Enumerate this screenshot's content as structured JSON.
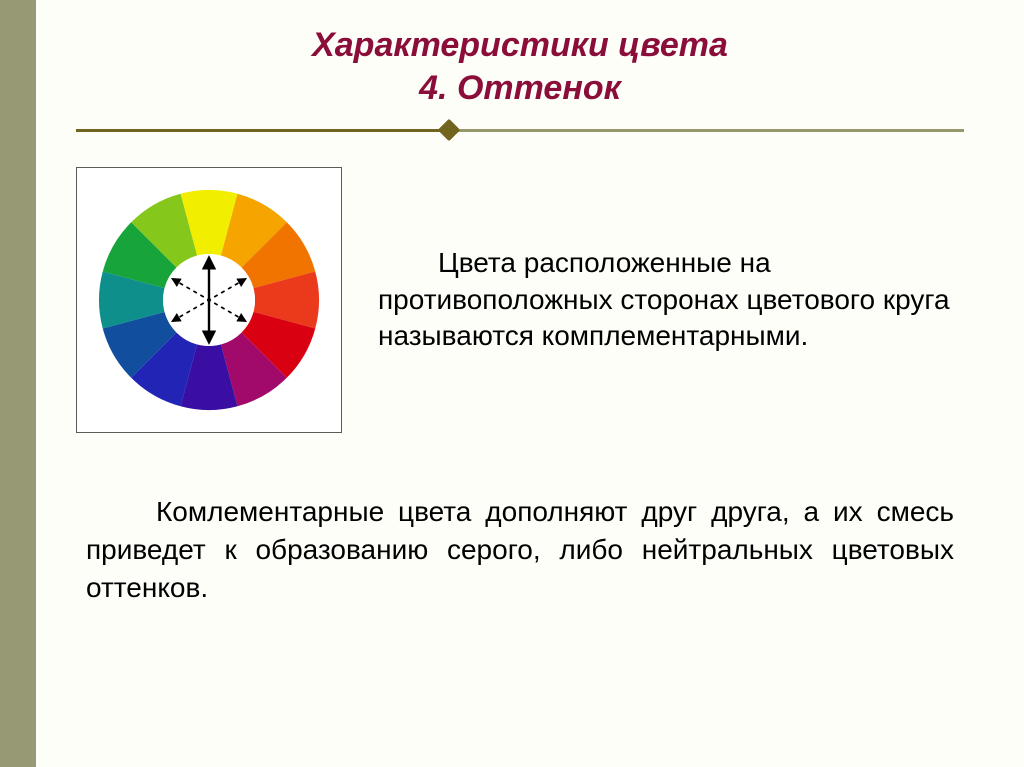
{
  "title_line1": "Характеристики цвета",
  "title_line2": "4. Оттенок",
  "paragraph_right": "Цвета расположенные на противоположных сторонах цветового круга называются комплементарными.",
  "paragraph_bottom": "Комлементарные цвета дополняют друг друга, а их смесь приведет к образованию серого, либо нейтральных цветовых оттенков.",
  "style": {
    "title_color": "#8a0d3a",
    "rule_base": "#97996c",
    "rule_accent": "#71641f",
    "side_strip": "#979975",
    "bg": "#fefef9"
  },
  "color_wheel": {
    "type": "pie",
    "segments": 12,
    "outer_radius": 110,
    "inner_radius": 46,
    "center_fill": "#ffffff",
    "colors": [
      "#f2ee00",
      "#f6a500",
      "#f27400",
      "#ea3a1b",
      "#d90011",
      "#a10a6a",
      "#3a0ea3",
      "#2224b5",
      "#114f9e",
      "#0e8f8b",
      "#17a43a",
      "#86c71c"
    ],
    "arrows": [
      {
        "angle_deg": 90,
        "dashed": false
      },
      {
        "angle_deg": 30,
        "dashed": true
      },
      {
        "angle_deg": 150,
        "dashed": true
      }
    ],
    "arrow_color": "#000000"
  }
}
